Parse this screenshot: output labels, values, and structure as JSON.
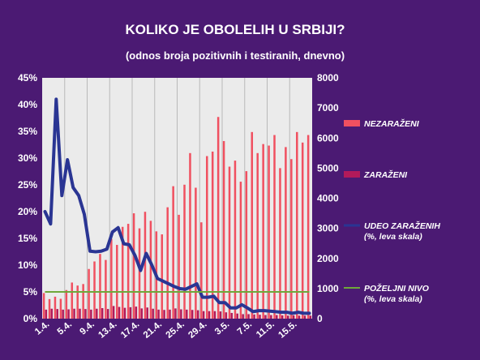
{
  "chart_data": {
    "type": "bar+line",
    "title": "KOLIKO JE OBOLELIH U SRBIJI?",
    "subtitle": "(odnos broja pozitivnih i testiranih, dnevno)",
    "x_tick_labels": [
      "1.4.",
      "5.4.",
      "9.4.",
      "13.4.",
      "17.4.",
      "21.4.",
      "25.4.",
      "29.4.",
      "3.5.",
      "7.5.",
      "11.5.",
      "15.5."
    ],
    "x_tick_every": 4,
    "y_left": {
      "ylim": [
        0,
        45
      ],
      "ticks": [
        "0%",
        "5%",
        "10%",
        "15%",
        "20%",
        "25%",
        "30%",
        "35%",
        "40%",
        "45%"
      ]
    },
    "y_right": {
      "ylim": [
        0,
        8000
      ],
      "ticks": [
        "0",
        "1000",
        "2000",
        "3000",
        "4000",
        "5000",
        "6000",
        "7000",
        "8000"
      ]
    },
    "grid": "vertical",
    "legend_placement": "right",
    "colors": {
      "plot_bg": "#ebebeb",
      "nezarazeni": "#f05060",
      "zarazeni": "#b21a5a",
      "udeo": "#2a3593",
      "pozeljni": "#6fa83a",
      "grid": "#b9b9b9"
    },
    "series": [
      {
        "name": "NEZARAŽENI",
        "axis": "right",
        "type": "bar",
        "values": [
          850,
          650,
          730,
          660,
          950,
          1200,
          1100,
          1150,
          1650,
          1900,
          2150,
          1950,
          2650,
          2450,
          3050,
          3150,
          3500,
          3000,
          3550,
          3250,
          2900,
          2800,
          3700,
          4400,
          3450,
          4450,
          5500,
          4350,
          3200,
          5400,
          5550,
          6700,
          5900,
          5050,
          5250,
          4550,
          4900,
          6200,
          5500,
          5800,
          5750,
          6100,
          5000,
          5700,
          5300,
          6200,
          5850,
          6100
        ]
      },
      {
        "name": "ZARAŽENI",
        "axis": "right",
        "type": "bar",
        "values": [
          300,
          330,
          320,
          300,
          310,
          330,
          330,
          320,
          300,
          330,
          350,
          320,
          420,
          390,
          360,
          380,
          400,
          340,
          370,
          330,
          300,
          290,
          300,
          340,
          310,
          300,
          290,
          280,
          250,
          250,
          250,
          240,
          210,
          190,
          170,
          150,
          150,
          140,
          130,
          120,
          120,
          120,
          110,
          100,
          110,
          100,
          100,
          100
        ]
      },
      {
        "name": "UDEO ZARAŽENIH (%, leva skala)",
        "axis": "left",
        "type": "line",
        "values": [
          20.0,
          17.7,
          41.0,
          23.0,
          29.7,
          24.5,
          23.0,
          19.5,
          12.6,
          12.5,
          12.6,
          13.0,
          16.2,
          17.0,
          14.0,
          13.8,
          11.8,
          9.0,
          12.2,
          10.0,
          7.5,
          7.0,
          6.5,
          6.0,
          5.6,
          5.5,
          6.0,
          6.5,
          4.0,
          4.0,
          4.2,
          3.0,
          3.0,
          2.0,
          2.0,
          2.6,
          2.0,
          1.3,
          1.5,
          1.5,
          1.4,
          1.3,
          1.2,
          1.2,
          1.0,
          1.2,
          1.0,
          1.0
        ]
      },
      {
        "name": "POŽELJNI NIVO (%, leva skala)",
        "axis": "left",
        "type": "line",
        "values": [
          5,
          5
        ]
      }
    ],
    "legend": [
      {
        "series": 0,
        "lines": [
          "NEZARAŽENI"
        ]
      },
      {
        "series": 1,
        "lines": [
          "ZARAŽENI"
        ]
      },
      {
        "series": 2,
        "lines": [
          "UDEO ZARAŽENIH",
          "(%, leva skala)"
        ]
      },
      {
        "series": 3,
        "lines": [
          "POŽELJNI NIVO",
          "(%, leva skala)"
        ]
      }
    ]
  }
}
